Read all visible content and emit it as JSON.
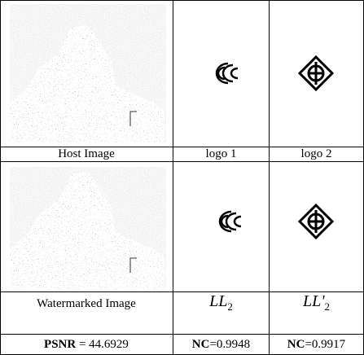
{
  "table": {
    "rows": [
      [
        "Host Image",
        "logo 1",
        "logo 2"
      ],
      [
        "Watermarked Image",
        {
          "base": "LL",
          "sub": "2"
        },
        {
          "base": "LL'",
          "sub": "2"
        }
      ],
      [
        {
          "bold": "PSNR",
          "text": " = 44.6929"
        },
        {
          "bold": "NC",
          "text": "=0.9948"
        },
        {
          "bold": "NC",
          "text": "=0.9917"
        }
      ]
    ]
  }
}
